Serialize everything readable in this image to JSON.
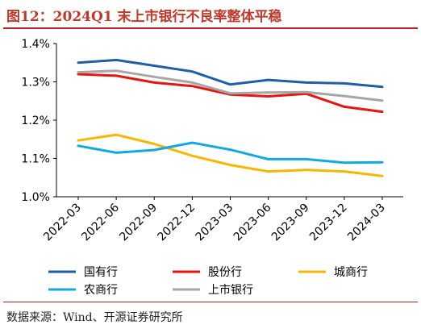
{
  "page": {
    "title": "图12：2024Q1 末上市银行不良率整体平稳",
    "source": "数据来源：Wind、开源证券研究所"
  },
  "chart_data": {
    "type": "line",
    "title": "",
    "xlabel": "",
    "ylabel": "",
    "categories": [
      "2022-03",
      "2022-06",
      "2022-09",
      "2022-12",
      "2023-03",
      "2023-06",
      "2023-09",
      "2023-12",
      "2024-03"
    ],
    "ylim": [
      1.0,
      1.4
    ],
    "yticks": [
      "1.0%",
      "1.1%",
      "1.2%",
      "1.3%",
      "1.4%"
    ],
    "ytick_values": [
      1.0,
      1.1,
      1.2,
      1.3,
      1.4
    ],
    "grid": false,
    "legend_position": "bottom",
    "series": [
      {
        "name": "国有行",
        "color": "#1f5fa8",
        "values": [
          1.35,
          1.357,
          1.342,
          1.327,
          1.293,
          1.305,
          1.298,
          1.296,
          1.287
        ]
      },
      {
        "name": "股份行",
        "color": "#e8150e",
        "values": [
          1.32,
          1.316,
          1.298,
          1.289,
          1.267,
          1.262,
          1.269,
          1.235,
          1.222
        ]
      },
      {
        "name": "城商行",
        "color": "#f5b800",
        "values": [
          1.147,
          1.162,
          1.138,
          1.107,
          1.083,
          1.066,
          1.07,
          1.066,
          1.054
        ]
      },
      {
        "name": "农商行",
        "color": "#12a8e0",
        "values": [
          1.133,
          1.115,
          1.122,
          1.141,
          1.123,
          1.098,
          1.098,
          1.089,
          1.09
        ]
      },
      {
        "name": "上市银行",
        "color": "#a6a6a6",
        "values": [
          1.325,
          1.329,
          1.313,
          1.298,
          1.27,
          1.272,
          1.273,
          1.263,
          1.251
        ]
      }
    ]
  }
}
